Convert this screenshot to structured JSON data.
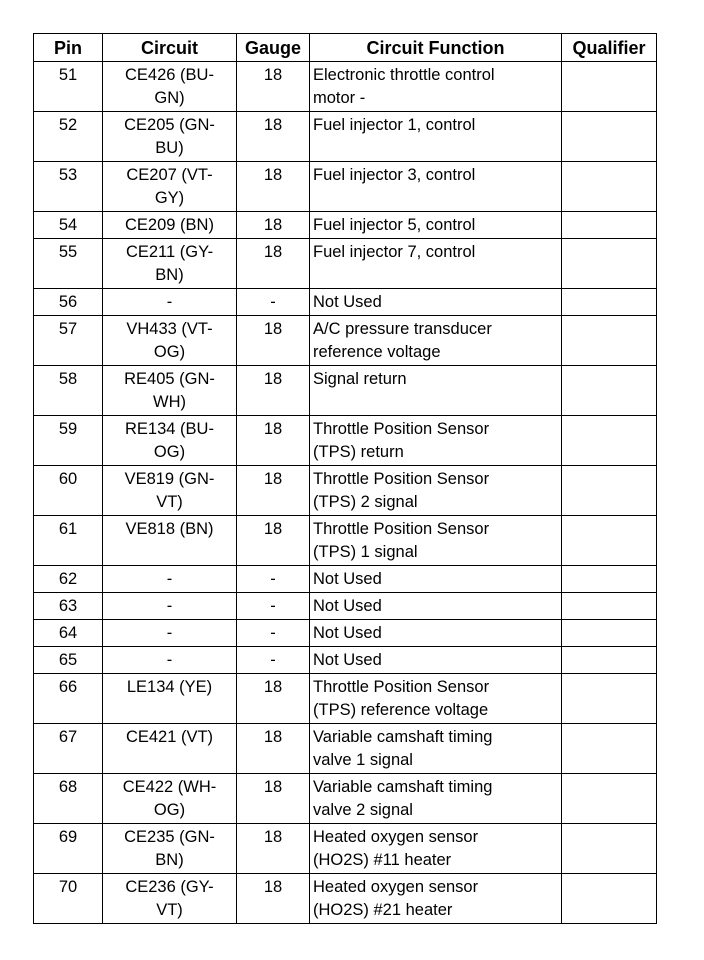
{
  "table": {
    "headers": [
      "Pin",
      "Circuit",
      "Gauge",
      "Circuit Function",
      "Qualifier"
    ],
    "rows": [
      {
        "pin": "51",
        "circuit": "CE426 (BU-\nGN)",
        "gauge": "18",
        "function": "Electronic throttle control\nmotor -",
        "qualifier": ""
      },
      {
        "pin": "52",
        "circuit": "CE205 (GN-\nBU)",
        "gauge": "18",
        "function": "Fuel injector 1, control",
        "qualifier": ""
      },
      {
        "pin": "53",
        "circuit": "CE207 (VT-\nGY)",
        "gauge": "18",
        "function": "Fuel injector 3, control",
        "qualifier": ""
      },
      {
        "pin": "54",
        "circuit": "CE209 (BN)",
        "gauge": "18",
        "function": "Fuel injector 5, control",
        "qualifier": ""
      },
      {
        "pin": "55",
        "circuit": "CE211 (GY-\nBN)",
        "gauge": "18",
        "function": "Fuel injector 7, control",
        "qualifier": ""
      },
      {
        "pin": "56",
        "circuit": "-",
        "gauge": "-",
        "function": "Not Used",
        "qualifier": ""
      },
      {
        "pin": "57",
        "circuit": "VH433 (VT-\nOG)",
        "gauge": "18",
        "function": "A/C pressure transducer\nreference voltage",
        "qualifier": ""
      },
      {
        "pin": "58",
        "circuit": "RE405 (GN-\nWH)",
        "gauge": "18",
        "function": "Signal return",
        "qualifier": ""
      },
      {
        "pin": "59",
        "circuit": "RE134 (BU-\nOG)",
        "gauge": "18",
        "function": "Throttle Position Sensor\n(TPS) return",
        "qualifier": ""
      },
      {
        "pin": "60",
        "circuit": "VE819 (GN-\nVT)",
        "gauge": "18",
        "function": "Throttle Position Sensor\n(TPS) 2 signal",
        "qualifier": ""
      },
      {
        "pin": "61",
        "circuit": "VE818 (BN)",
        "gauge": "18",
        "function": "Throttle Position Sensor\n(TPS) 1 signal",
        "qualifier": ""
      },
      {
        "pin": "62",
        "circuit": "-",
        "gauge": "-",
        "function": "Not Used",
        "qualifier": ""
      },
      {
        "pin": "63",
        "circuit": "-",
        "gauge": "-",
        "function": "Not Used",
        "qualifier": ""
      },
      {
        "pin": "64",
        "circuit": "-",
        "gauge": "-",
        "function": "Not Used",
        "qualifier": ""
      },
      {
        "pin": "65",
        "circuit": "-",
        "gauge": "-",
        "function": "Not Used",
        "qualifier": ""
      },
      {
        "pin": "66",
        "circuit": "LE134 (YE)",
        "gauge": "18",
        "function": "Throttle Position Sensor\n(TPS) reference voltage",
        "qualifier": ""
      },
      {
        "pin": "67",
        "circuit": "CE421 (VT)",
        "gauge": "18",
        "function": "Variable camshaft timing\nvalve 1 signal",
        "qualifier": ""
      },
      {
        "pin": "68",
        "circuit": "CE422 (WH-\nOG)",
        "gauge": "18",
        "function": "Variable camshaft timing\nvalve 2 signal",
        "qualifier": ""
      },
      {
        "pin": "69",
        "circuit": "CE235 (GN-\nBN)",
        "gauge": "18",
        "function": "Heated oxygen sensor\n(HO2S) #11 heater",
        "qualifier": ""
      },
      {
        "pin": "70",
        "circuit": "CE236 (GY-\nVT)",
        "gauge": "18",
        "function": "Heated oxygen sensor\n(HO2S) #21 heater",
        "qualifier": ""
      }
    ]
  }
}
